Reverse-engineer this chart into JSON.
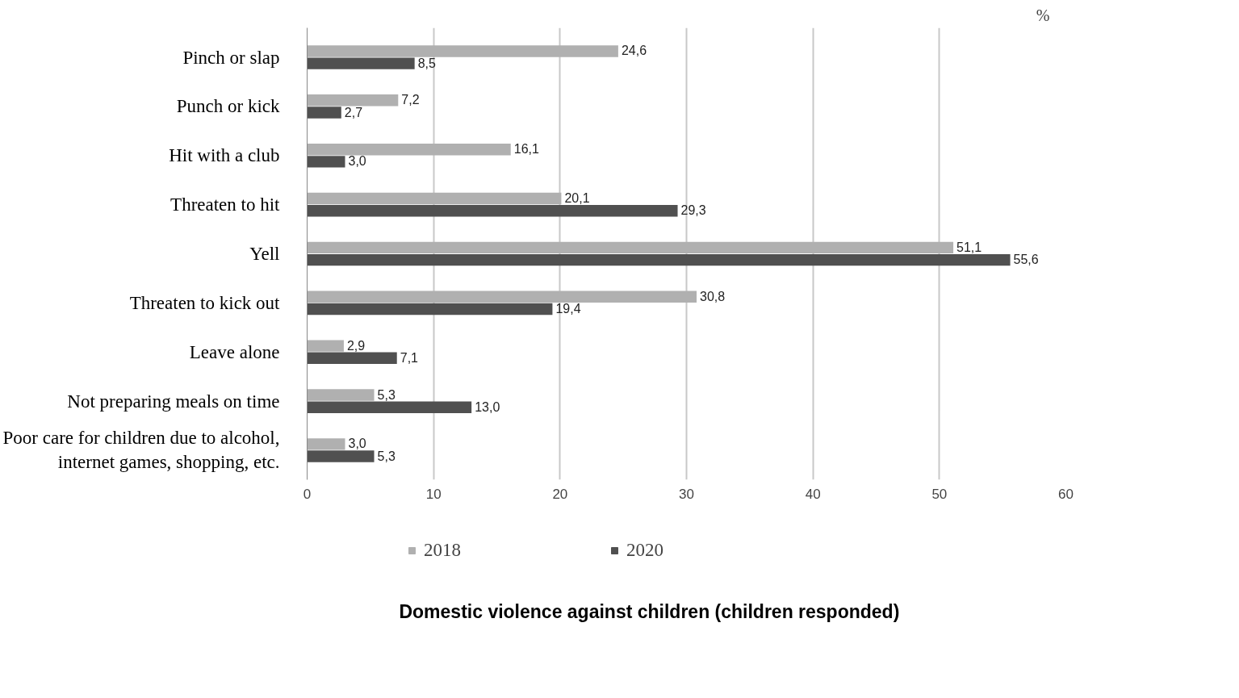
{
  "chart_data": {
    "type": "bar",
    "orientation": "horizontal",
    "title": "Domestic violence against children (children responded)",
    "xlabel": "%",
    "categories": [
      "Pinch or slap",
      "Punch or kick",
      "Hit with a club",
      "Threaten to hit",
      "Yell",
      "Threaten to kick out",
      "Leave alone",
      "Not preparing meals on time",
      "Poor care for children due to alcohol,\ninternet games, shopping, etc."
    ],
    "series": [
      {
        "name": "2018",
        "color": "#b0b0b0",
        "values": [
          24.6,
          7.2,
          16.1,
          20.1,
          51.1,
          30.8,
          2.9,
          5.3,
          3.0
        ],
        "value_labels": [
          "24,6",
          "7,2",
          "16,1",
          "20,1",
          "51,1",
          "30,8",
          "2,9",
          "5,3",
          "3,0"
        ]
      },
      {
        "name": "2020",
        "color": "#505050",
        "values": [
          8.5,
          2.7,
          3.0,
          29.3,
          55.6,
          19.4,
          7.1,
          13.0,
          5.3
        ],
        "value_labels": [
          "8,5",
          "2,7",
          "3,0",
          "29,3",
          "55,6",
          "19,4",
          "7,1",
          "13,0",
          "5,3"
        ]
      }
    ],
    "xlim": [
      0,
      60
    ],
    "xticks": [
      0,
      10,
      20,
      30,
      40,
      50,
      60
    ],
    "grid": "x",
    "legend": "bottom"
  }
}
